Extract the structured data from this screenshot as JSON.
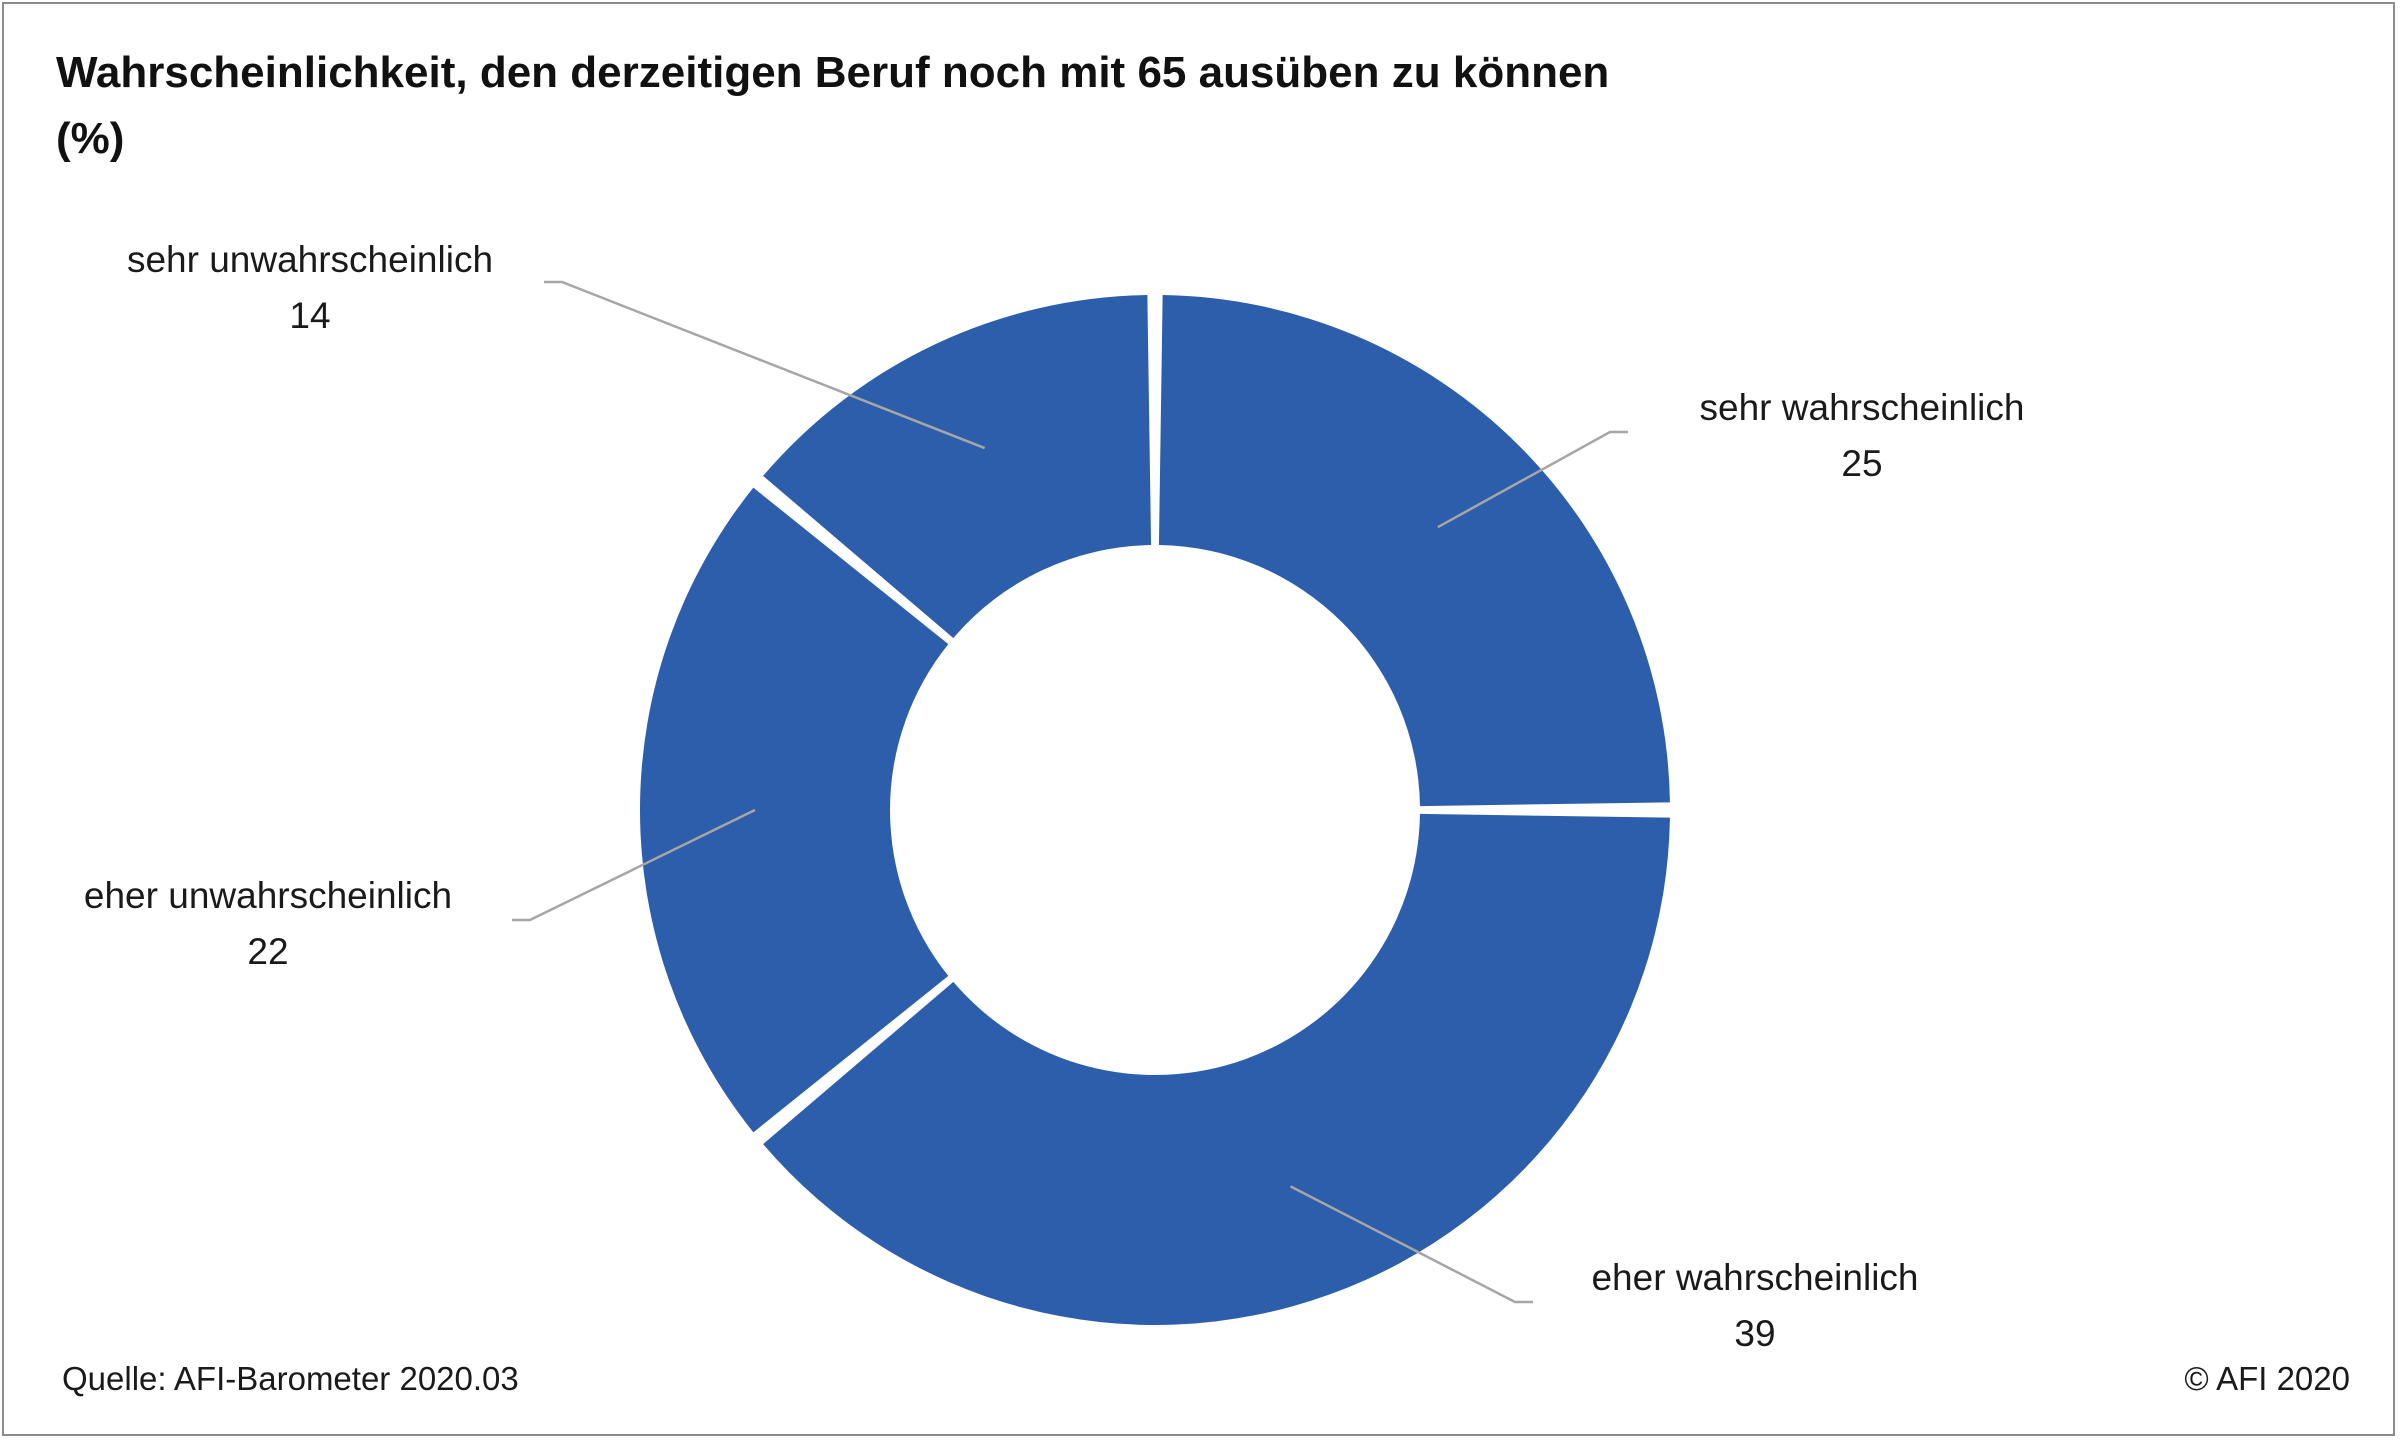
{
  "chart_data": {
    "type": "pie",
    "title": "Wahrscheinlichkeit, den derzeitigen Beruf noch mit 65 ausüben zu können",
    "subtitle": "(%)",
    "slices": [
      {
        "label": "sehr wahrscheinlich",
        "value": 25
      },
      {
        "label": "eher wahrscheinlich",
        "value": 39
      },
      {
        "label": "eher unwahrscheinlich",
        "value": 22
      },
      {
        "label": "sehr unwahrscheinlich",
        "value": 14
      }
    ],
    "donut": true,
    "color": "#2c5eab",
    "legend": "none"
  },
  "footer": {
    "source": "Quelle: AFI-Barometer 2020.03",
    "copyright": "© AFI 2020"
  }
}
